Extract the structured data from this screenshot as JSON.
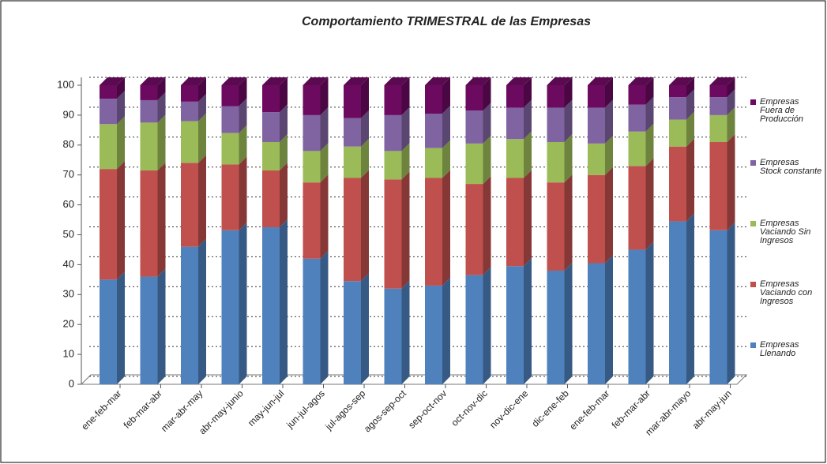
{
  "chart_data": {
    "type": "bar3d_stacked",
    "title": "Comportamiento TRIMESTRAL de las Empresas",
    "categories": [
      "ene-feb-mar",
      "feb-mar-abr",
      "mar-abr-may",
      "abr-may-junio",
      "may-jun-jul",
      "jun-jul-agos",
      "jul-agos-sep",
      "agos-sep-oct",
      "sep-oct-nov",
      "oct-nov-dic",
      "nov-dic-ene",
      "dic-ene-feb",
      "ene-feb-mar",
      "feb-mar-abr",
      "mar-abr-mayo",
      "abr-may-jun"
    ],
    "series": [
      {
        "name": "Empresas Llenando",
        "color": "#4f81bd",
        "values": [
          35,
          36,
          46,
          51.5,
          52.5,
          42,
          34.5,
          32,
          33,
          36.5,
          39.5,
          38,
          40.5,
          45,
          54.5,
          51.5
        ]
      },
      {
        "name": "Empresas Vaciando con Ingresos",
        "color": "#c0504d",
        "values": [
          37,
          35.5,
          28,
          22,
          19,
          25.5,
          34.5,
          36.5,
          36,
          30.5,
          29.5,
          29.5,
          29.5,
          28,
          25,
          29.5
        ]
      },
      {
        "name": "Empresas Vaciando Sin Ingresos",
        "color": "#9bbb59",
        "values": [
          15,
          16,
          14,
          10.5,
          9.5,
          10.5,
          10.5,
          9.5,
          10,
          13.5,
          13,
          13.5,
          10.5,
          11.5,
          9,
          9
        ]
      },
      {
        "name": "Empresas Stock constante",
        "color": "#8064a2",
        "values": [
          8.5,
          7.5,
          6.5,
          9,
          10,
          12,
          9.5,
          12,
          11.5,
          11,
          10.5,
          11.5,
          12,
          9,
          7.5,
          6
        ]
      },
      {
        "name": "Empresas Fuera de Producción",
        "color": "#6b0a5f",
        "values": [
          4.5,
          5,
          5.5,
          7,
          9,
          10,
          11,
          10,
          9.5,
          8.5,
          7.5,
          7.5,
          7.5,
          6.5,
          4,
          4
        ]
      }
    ],
    "ylim": [
      0,
      100
    ],
    "yticks": [
      0,
      10,
      20,
      30,
      40,
      50,
      60,
      70,
      80,
      90,
      100
    ],
    "grid": true,
    "legend": "right"
  }
}
